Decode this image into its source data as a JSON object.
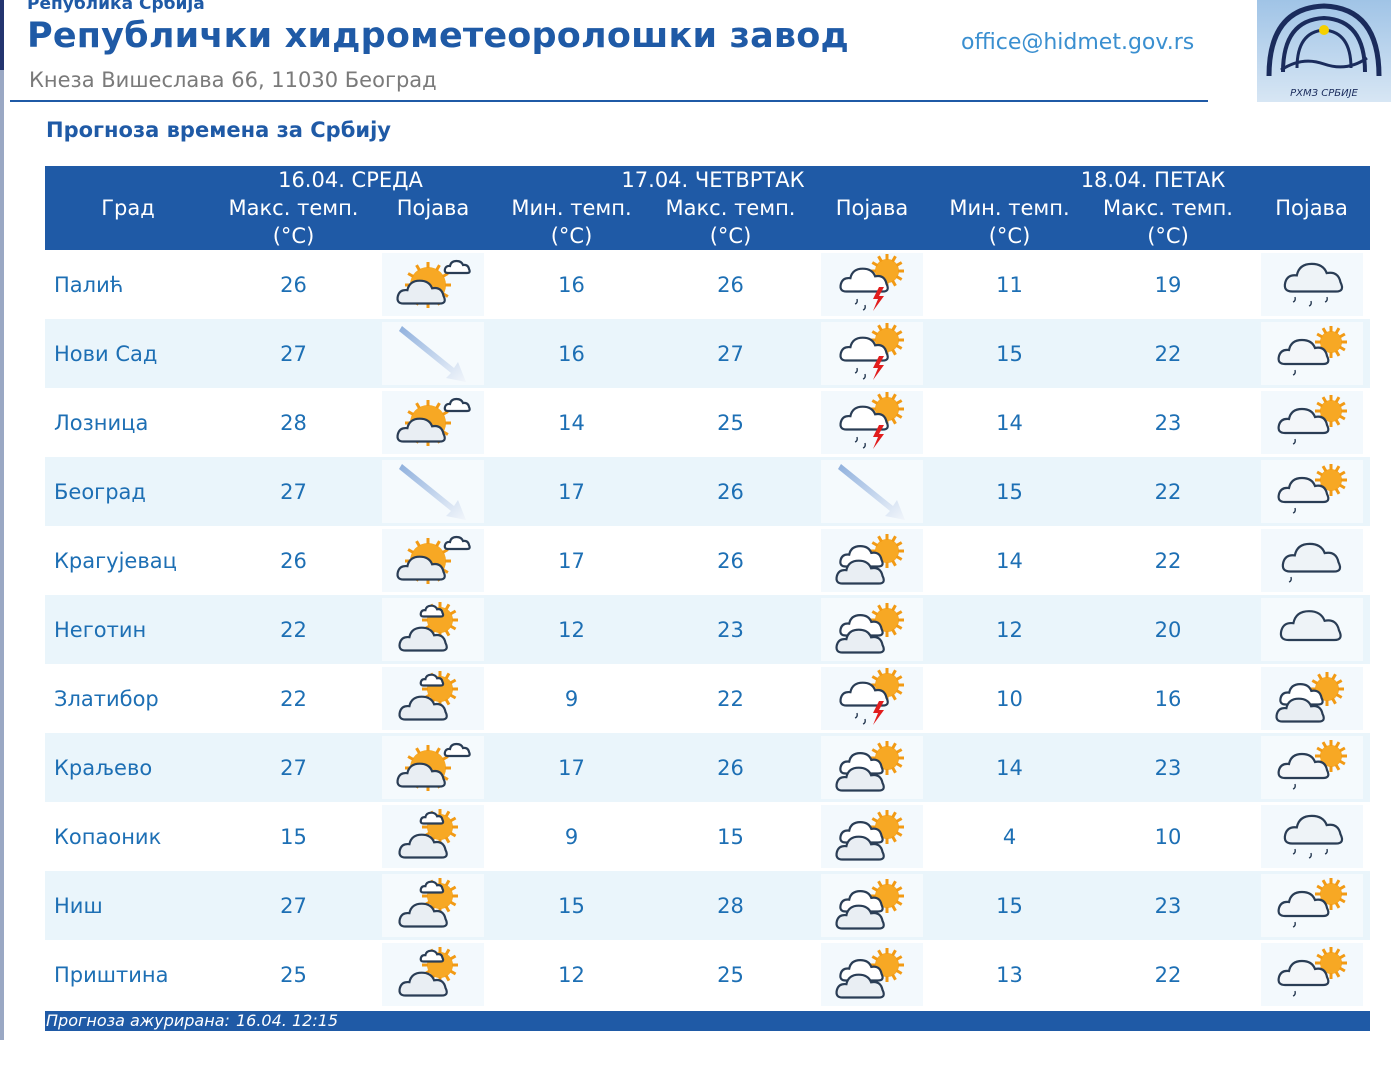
{
  "header": {
    "kicker": "Република Србија",
    "title": "Републички хидрометеоролошки завод",
    "address": "Кнеза Вишеслава 66, 11030 Београд",
    "email": "office@hidmet.gov.rs",
    "logo_text": "РХМЗ СРБИЈЕ"
  },
  "page_title": "Прогноза времена за Србију",
  "table": {
    "city_header": "Град",
    "days": [
      {
        "date": "16.04. СРЕДА",
        "cols": [
          "Макс. темп. (°C)",
          "Појава"
        ]
      },
      {
        "date": "17.04. ЧЕТВРТАК",
        "cols": [
          "Мин. темп. (°C)",
          "Макс. темп. (°C)",
          "Појава"
        ]
      },
      {
        "date": "18.04. ПЕТАК",
        "cols": [
          "Мин. темп. (°C)",
          "Макс. темп. (°C)",
          "Појава"
        ]
      }
    ],
    "rows": [
      {
        "city": "Палић",
        "d1_max": "26",
        "d1_icon": "sunny-cloudy-icon",
        "d2_min": "16",
        "d2_max": "26",
        "d2_icon": "thunderstorm-icon",
        "d3_min": "11",
        "d3_max": "19",
        "d3_icon": "cloud-rain-icon"
      },
      {
        "city": "Нови Сад",
        "d1_max": "27",
        "d1_icon": "wind-arrow-icon",
        "d2_min": "16",
        "d2_max": "27",
        "d2_icon": "thunderstorm-icon",
        "d3_min": "15",
        "d3_max": "22",
        "d3_icon": "cloud-sun-drizzle-icon"
      },
      {
        "city": "Лозница",
        "d1_max": "28",
        "d1_icon": "sunny-cloudy-icon",
        "d2_min": "14",
        "d2_max": "25",
        "d2_icon": "thunderstorm-icon",
        "d3_min": "14",
        "d3_max": "23",
        "d3_icon": "cloud-sun-drizzle-icon"
      },
      {
        "city": "Београд",
        "d1_max": "27",
        "d1_icon": "wind-arrow-icon",
        "d2_min": "17",
        "d2_max": "26",
        "d2_icon": "wind-arrow-icon",
        "d3_min": "15",
        "d3_max": "22",
        "d3_icon": "cloud-sun-drizzle-icon"
      },
      {
        "city": "Крагујевац",
        "d1_max": "26",
        "d1_icon": "sunny-cloudy-icon",
        "d2_min": "17",
        "d2_max": "26",
        "d2_icon": "partly-cloudy-icon",
        "d3_min": "14",
        "d3_max": "22",
        "d3_icon": "cloud-drizzle-icon"
      },
      {
        "city": "Неготин",
        "d1_max": "22",
        "d1_icon": "sun-clouds-icon",
        "d2_min": "12",
        "d2_max": "23",
        "d2_icon": "partly-cloudy-icon",
        "d3_min": "12",
        "d3_max": "20",
        "d3_icon": "overcast-icon"
      },
      {
        "city": "Златибор",
        "d1_max": "22",
        "d1_icon": "sun-clouds-icon",
        "d2_min": "9",
        "d2_max": "22",
        "d2_icon": "thunderstorm-icon",
        "d3_min": "10",
        "d3_max": "16",
        "d3_icon": "partly-cloudy-icon"
      },
      {
        "city": "Краљево",
        "d1_max": "27",
        "d1_icon": "sunny-cloudy-icon",
        "d2_min": "17",
        "d2_max": "26",
        "d2_icon": "partly-cloudy-icon",
        "d3_min": "14",
        "d3_max": "23",
        "d3_icon": "cloud-sun-drizzle-icon"
      },
      {
        "city": "Копаоник",
        "d1_max": "15",
        "d1_icon": "sun-clouds-icon",
        "d2_min": "9",
        "d2_max": "15",
        "d2_icon": "partly-cloudy-icon",
        "d3_min": "4",
        "d3_max": "10",
        "d3_icon": "cloud-rain-icon"
      },
      {
        "city": "Ниш",
        "d1_max": "27",
        "d1_icon": "sun-clouds-icon",
        "d2_min": "15",
        "d2_max": "28",
        "d2_icon": "partly-cloudy-icon",
        "d3_min": "15",
        "d3_max": "23",
        "d3_icon": "cloud-sun-drizzle-icon"
      },
      {
        "city": "Приштина",
        "d1_max": "25",
        "d1_icon": "sun-clouds-icon",
        "d2_min": "12",
        "d2_max": "25",
        "d2_icon": "partly-cloudy-icon",
        "d3_min": "13",
        "d3_max": "22",
        "d3_icon": "cloud-sun-drizzle-icon"
      }
    ]
  },
  "footer": {
    "updated_label": "Прогноза ажурирана:",
    "updated_value": "16.04. 12:15"
  },
  "colors": {
    "brand_blue": "#1f5aa6",
    "row_alt": "#eaf5fb",
    "text_blue": "#1d6fb4",
    "email_blue": "#3a8fd0"
  }
}
